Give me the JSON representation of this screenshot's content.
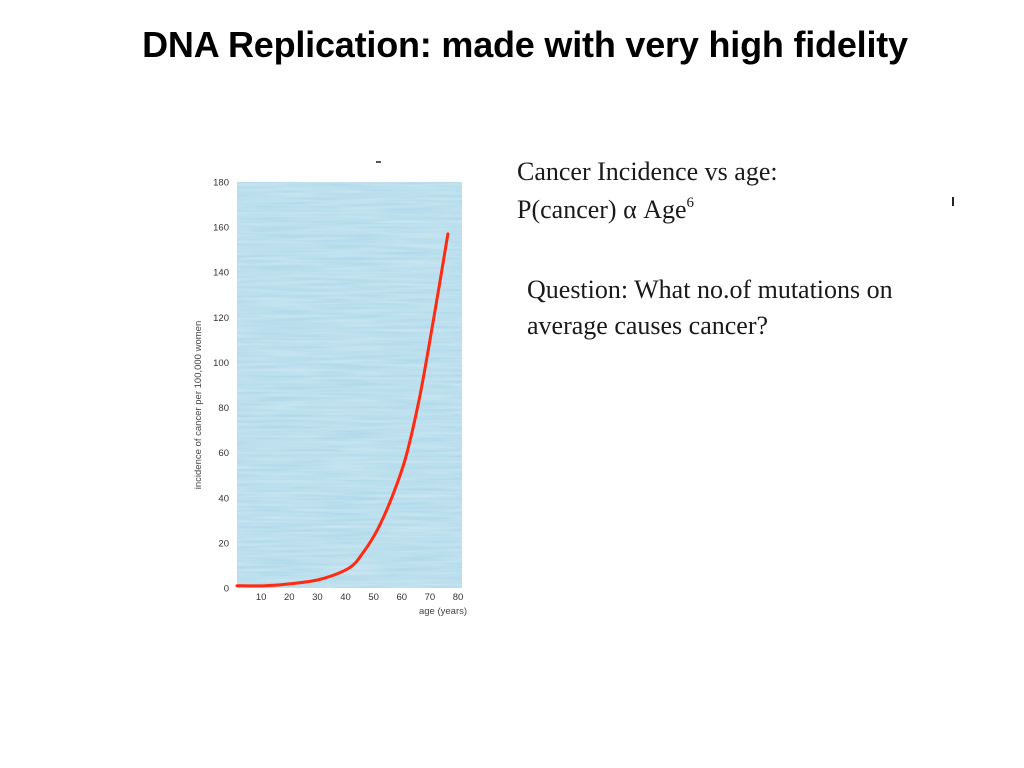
{
  "slide": {
    "title": "DNA Replication: made with very high fidelity",
    "heading_line1": "Cancer Incidence vs age:",
    "heading_line2_prefix": "P(cancer) α Age",
    "heading_line2_exponent": "6",
    "question_line1": "Question: What no.of mutations on",
    "question_line2": "average causes cancer?"
  },
  "colors": {
    "plot_background": "#a9d6e8",
    "curve": "#ff2a10",
    "text": "#1a1a1a"
  },
  "chart_data": {
    "type": "line",
    "title": "",
    "xlabel": "age (years)",
    "ylabel": "incidence of cancer per 100,000 women",
    "xlim": [
      0,
      80
    ],
    "ylim": [
      0,
      180
    ],
    "x_ticks": [
      10,
      20,
      30,
      40,
      50,
      60,
      70,
      80
    ],
    "y_ticks": [
      0,
      20,
      40,
      60,
      80,
      100,
      120,
      140,
      160,
      180
    ],
    "grid": false,
    "legend": "none",
    "series": [
      {
        "x": [
          0,
          10,
          20,
          30,
          40,
          45,
          50,
          55,
          60,
          65,
          70,
          75
        ],
        "y": [
          1,
          1,
          2,
          4,
          9,
          16,
          26,
          40,
          58,
          85,
          120,
          157
        ]
      }
    ]
  }
}
